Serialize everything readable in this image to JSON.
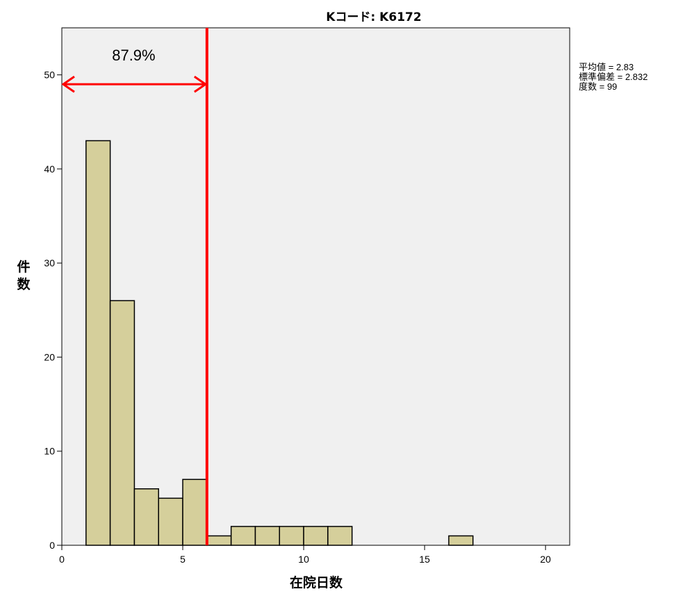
{
  "chart_data": {
    "type": "bar",
    "title": "Kコード: K6172",
    "xlabel": "在院日数",
    "ylabel": "件数",
    "xlim": [
      0,
      21
    ],
    "ylim": [
      0,
      55
    ],
    "x_ticks": [
      0,
      5,
      10,
      15,
      20
    ],
    "y_ticks": [
      0,
      10,
      20,
      30,
      40,
      50
    ],
    "bin_width": 1,
    "bins": [
      {
        "start": 1,
        "end": 2,
        "count": 43
      },
      {
        "start": 2,
        "end": 3,
        "count": 26
      },
      {
        "start": 3,
        "end": 4,
        "count": 6
      },
      {
        "start": 4,
        "end": 5,
        "count": 5
      },
      {
        "start": 5,
        "end": 6,
        "count": 7
      },
      {
        "start": 6,
        "end": 7,
        "count": 1
      },
      {
        "start": 7,
        "end": 8,
        "count": 2
      },
      {
        "start": 8,
        "end": 9,
        "count": 2
      },
      {
        "start": 9,
        "end": 10,
        "count": 2
      },
      {
        "start": 10,
        "end": 11,
        "count": 2
      },
      {
        "start": 11,
        "end": 12,
        "count": 2
      },
      {
        "start": 16,
        "end": 17,
        "count": 1
      }
    ],
    "stats": [
      "平均値 = 2.83",
      "標準偏差 = 2.832",
      "度数 = 99"
    ],
    "reference_line": {
      "x": 6,
      "label": "87.9%",
      "arrow_from_x": 0,
      "arrow_to_x": 6,
      "arrow_y": 49
    },
    "grid": false,
    "legend": "none",
    "colors": {
      "bar_fill": "#d5cf9b",
      "bar_stroke": "#000000",
      "plot_bg": "#f0f0f0",
      "reference": "#ff0000"
    }
  }
}
